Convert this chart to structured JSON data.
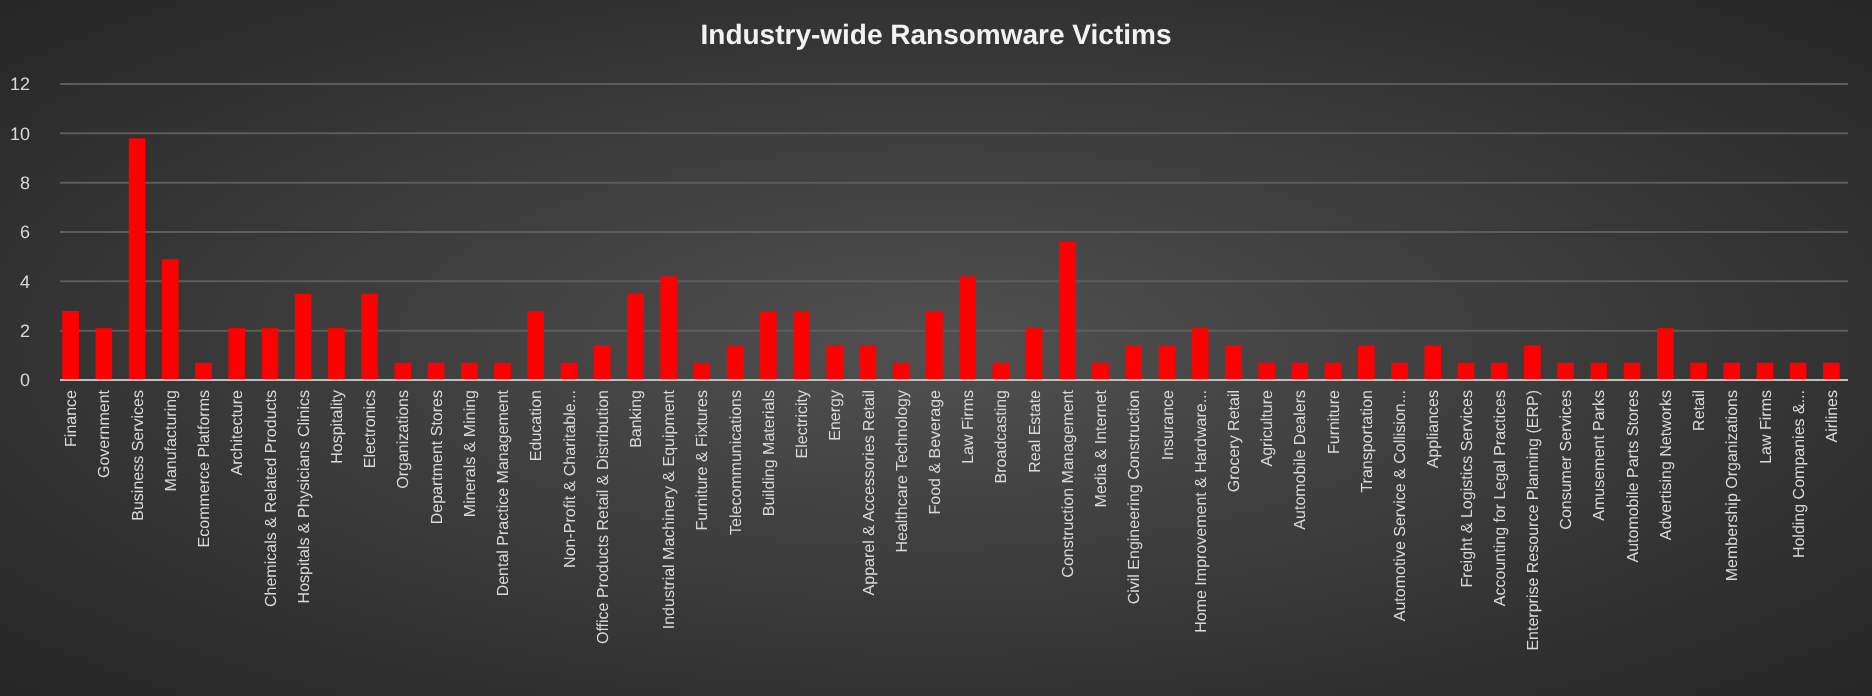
{
  "chart_data": {
    "type": "bar",
    "title": "Industry-wide Ransomware Victims",
    "categories": [
      "Finance",
      "Government",
      "Business Services",
      "Manufacturing",
      "Ecommerce Platforms",
      "Architecture",
      "Chemicals & Related Products",
      "Hospitals & Physicians Clinics",
      "Hospitality",
      "Electronics",
      "Organizations",
      "Department Stores",
      "Minerals & Mining",
      "Dental Practice Management",
      "Education",
      "Non-Profit & Charitable...",
      "Office Products Retail & Distribution",
      "Banking",
      "Industrial Machinery & Equipment",
      "Furniture & Fixtures",
      "Telecommunications",
      "Building Materials",
      "Electricity",
      "Energy",
      "Apparel & Accessories Retail",
      "Healthcare Technology",
      "Food & Beverage",
      "Law Firms",
      "Broadcasting",
      "Real Estate",
      "Construction Management",
      "Media & Internet",
      "Civil Engineering Construction",
      "Insurance",
      "Home Improvement & Hardware...",
      "Grocery Retail",
      "Agriculture",
      "Automobile Dealers",
      "Furniture",
      "Transportation",
      "Automotive Service & Collision...",
      "Appliances",
      "Freight & Logistics Services",
      "Accounting for Legal Practices",
      "Enterprise Resource Planning (ERP)",
      "Consumer Services",
      "Amusement Parks",
      "Automobile Parts Stores",
      "Advertising Networks",
      "Retail",
      "Membership Organizations",
      "Law Firms",
      "Holding Companies &...",
      "Airlines"
    ],
    "values": [
      2.8,
      2.1,
      9.8,
      4.9,
      0.7,
      2.1,
      2.1,
      3.5,
      2.1,
      3.5,
      0.7,
      0.7,
      0.7,
      0.7,
      2.8,
      0.7,
      1.4,
      3.5,
      4.2,
      0.7,
      1.4,
      2.8,
      2.8,
      1.4,
      1.4,
      0.7,
      2.8,
      4.2,
      0.7,
      2.1,
      5.6,
      0.7,
      1.4,
      1.4,
      2.1,
      1.4,
      0.7,
      0.7,
      0.7,
      1.4,
      0.7,
      1.4,
      0.7,
      0.7,
      1.4,
      0.7,
      0.7,
      0.7,
      2.1,
      0.7,
      0.7,
      0.7,
      0.7,
      0.7
    ],
    "color": "#ff0000",
    "ylim": [
      0,
      12
    ],
    "yticks": [
      0,
      2,
      4,
      6,
      8,
      10,
      12
    ],
    "grid": "y"
  }
}
